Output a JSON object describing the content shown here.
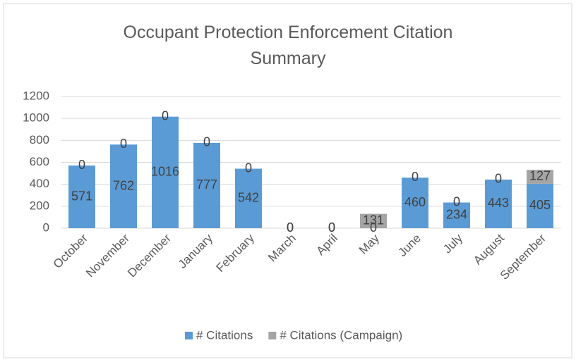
{
  "chart_data": {
    "type": "stacked_bar",
    "title": "Occupant Protection Enforcement Citation Summary",
    "categories": [
      "October",
      "November",
      "December",
      "January",
      "February",
      "March",
      "April",
      "May",
      "June",
      "July",
      "August",
      "September"
    ],
    "series": [
      {
        "name": "# Citations",
        "color": "#5b9bd5",
        "values": [
          571,
          762,
          1016,
          777,
          542,
          0,
          0,
          0,
          460,
          234,
          443,
          405
        ]
      },
      {
        "name": "# Citations (Campaign)",
        "color": "#a5a5a5",
        "values": [
          0,
          0,
          0,
          0,
          0,
          0,
          0,
          131,
          0,
          0,
          0,
          127
        ]
      }
    ],
    "ylim": [
      0,
      1200
    ],
    "yticks": [
      0,
      200,
      400,
      600,
      800,
      1000,
      1200
    ],
    "grid": true,
    "legend": "bottom"
  }
}
